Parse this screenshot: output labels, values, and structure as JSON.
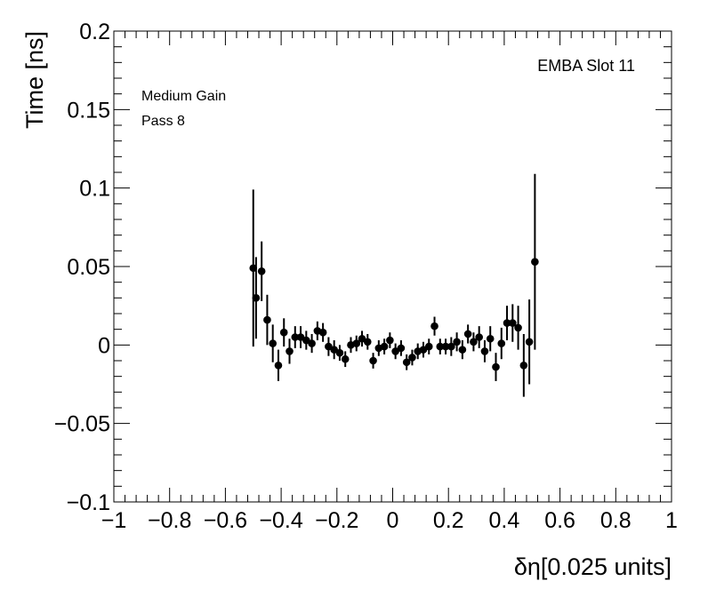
{
  "chart_data": {
    "type": "scatter",
    "xlabel": "δη[0.025 units]",
    "ylabel": "Time [ns]",
    "xlim": [
      -1,
      1
    ],
    "ylim": [
      -0.1,
      0.2
    ],
    "x_ticks": [
      -1,
      -0.8,
      -0.6,
      -0.4,
      -0.2,
      0,
      0.2,
      0.4,
      0.6,
      0.8,
      1
    ],
    "x_tick_labels": [
      "−1",
      "−0.8",
      "−0.6",
      "−0.4",
      "−0.2",
      "0",
      "0.2",
      "0.4",
      "0.6",
      "0.8",
      "1"
    ],
    "y_ticks": [
      -0.1,
      -0.05,
      0,
      0.05,
      0.1,
      0.15,
      0.2
    ],
    "y_tick_labels": [
      "−0.1",
      "−0.05",
      "0",
      "0.05",
      "0.1",
      "0.15",
      "0.2"
    ],
    "grid": false,
    "marker_color": "#000000",
    "annotations": {
      "top_right": "EMBA Slot 11",
      "top_left_line1": "Medium Gain",
      "top_left_line2": "Pass 8"
    },
    "series": [
      {
        "points": [
          {
            "x": -0.5,
            "y": 0.049,
            "err": 0.05
          },
          {
            "x": -0.49,
            "y": 0.03,
            "err": 0.026
          },
          {
            "x": -0.47,
            "y": 0.047,
            "err": 0.019
          },
          {
            "x": -0.45,
            "y": 0.016,
            "err": 0.016
          },
          {
            "x": -0.43,
            "y": 0.001,
            "err": 0.012
          },
          {
            "x": -0.41,
            "y": -0.013,
            "err": 0.01
          },
          {
            "x": -0.39,
            "y": 0.008,
            "err": 0.009
          },
          {
            "x": -0.37,
            "y": -0.004,
            "err": 0.008
          },
          {
            "x": -0.35,
            "y": 0.005,
            "err": 0.007
          },
          {
            "x": -0.33,
            "y": 0.005,
            "err": 0.007
          },
          {
            "x": -0.31,
            "y": 0.003,
            "err": 0.006
          },
          {
            "x": -0.29,
            "y": 0.001,
            "err": 0.006
          },
          {
            "x": -0.27,
            "y": 0.009,
            "err": 0.006
          },
          {
            "x": -0.25,
            "y": 0.008,
            "err": 0.006
          },
          {
            "x": -0.23,
            "y": -0.001,
            "err": 0.006
          },
          {
            "x": -0.21,
            "y": -0.003,
            "err": 0.006
          },
          {
            "x": -0.19,
            "y": -0.005,
            "err": 0.005
          },
          {
            "x": -0.17,
            "y": -0.009,
            "err": 0.005
          },
          {
            "x": -0.15,
            "y": 0.0,
            "err": 0.005
          },
          {
            "x": -0.13,
            "y": 0.001,
            "err": 0.005
          },
          {
            "x": -0.11,
            "y": 0.004,
            "err": 0.005
          },
          {
            "x": -0.09,
            "y": 0.002,
            "err": 0.005
          },
          {
            "x": -0.07,
            "y": -0.01,
            "err": 0.005
          },
          {
            "x": -0.05,
            "y": -0.002,
            "err": 0.005
          },
          {
            "x": -0.03,
            "y": -0.001,
            "err": 0.005
          },
          {
            "x": -0.01,
            "y": 0.003,
            "err": 0.005
          },
          {
            "x": 0.01,
            "y": -0.004,
            "err": 0.005
          },
          {
            "x": 0.03,
            "y": -0.002,
            "err": 0.005
          },
          {
            "x": 0.05,
            "y": -0.011,
            "err": 0.005
          },
          {
            "x": 0.07,
            "y": -0.008,
            "err": 0.005
          },
          {
            "x": 0.09,
            "y": -0.004,
            "err": 0.005
          },
          {
            "x": 0.11,
            "y": -0.003,
            "err": 0.005
          },
          {
            "x": 0.13,
            "y": -0.001,
            "err": 0.005
          },
          {
            "x": 0.15,
            "y": 0.012,
            "err": 0.006
          },
          {
            "x": 0.17,
            "y": -0.001,
            "err": 0.005
          },
          {
            "x": 0.19,
            "y": -0.001,
            "err": 0.005
          },
          {
            "x": 0.21,
            "y": -0.001,
            "err": 0.006
          },
          {
            "x": 0.23,
            "y": 0.002,
            "err": 0.006
          },
          {
            "x": 0.25,
            "y": -0.003,
            "err": 0.006
          },
          {
            "x": 0.27,
            "y": 0.007,
            "err": 0.006
          },
          {
            "x": 0.29,
            "y": 0.002,
            "err": 0.006
          },
          {
            "x": 0.31,
            "y": 0.005,
            "err": 0.007
          },
          {
            "x": 0.33,
            "y": -0.004,
            "err": 0.007
          },
          {
            "x": 0.35,
            "y": 0.004,
            "err": 0.008
          },
          {
            "x": 0.37,
            "y": -0.014,
            "err": 0.009
          },
          {
            "x": 0.39,
            "y": 0.001,
            "err": 0.01
          },
          {
            "x": 0.41,
            "y": 0.014,
            "err": 0.011
          },
          {
            "x": 0.43,
            "y": 0.014,
            "err": 0.012
          },
          {
            "x": 0.45,
            "y": 0.011,
            "err": 0.014
          },
          {
            "x": 0.47,
            "y": -0.013,
            "err": 0.02
          },
          {
            "x": 0.49,
            "y": 0.002,
            "err": 0.027
          },
          {
            "x": 0.51,
            "y": 0.053,
            "err": 0.056
          }
        ]
      }
    ]
  }
}
